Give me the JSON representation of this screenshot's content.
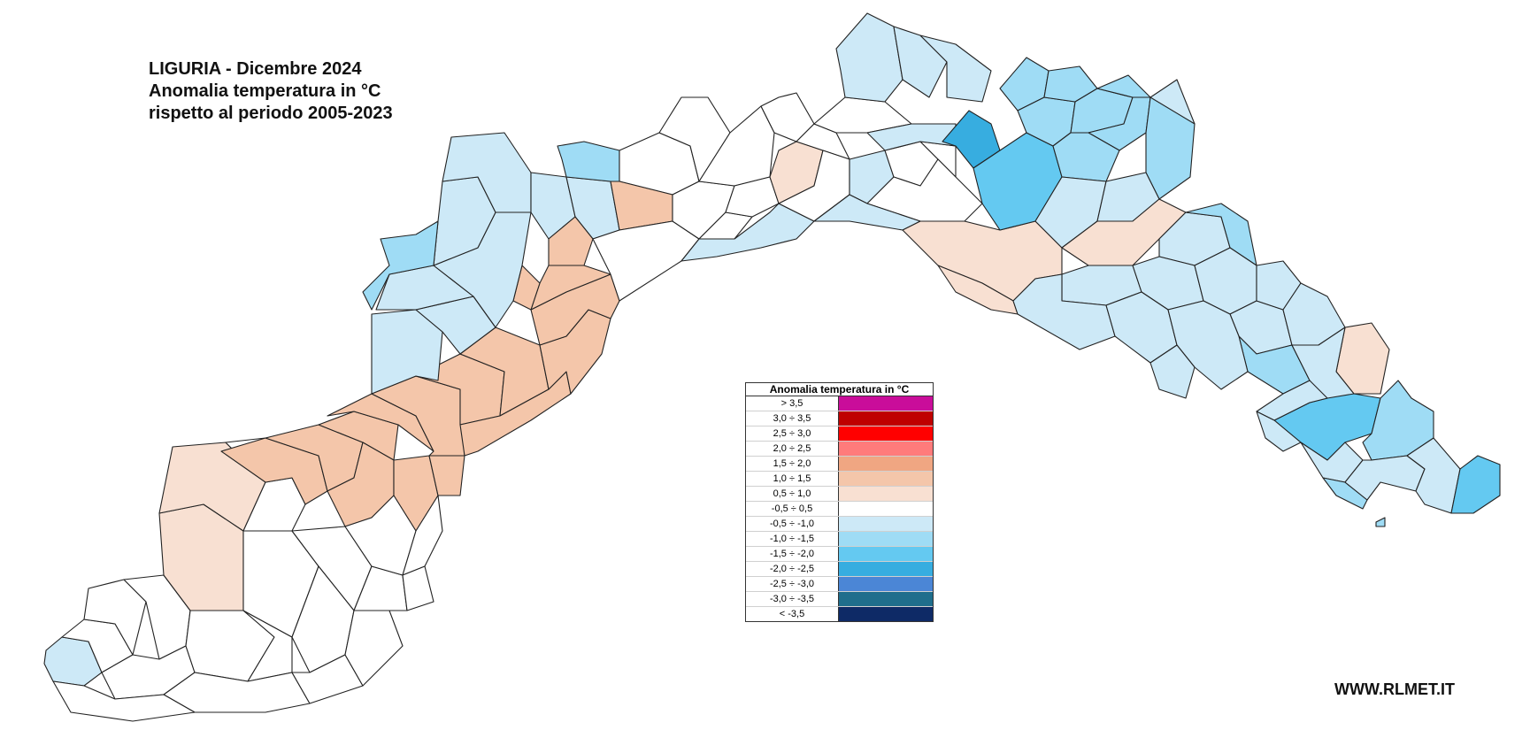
{
  "title": {
    "line1": "LIGURIA - Dicembre 2024",
    "line2": "Anomalia temperatura in °C",
    "line3": "rispetto al periodo 2005-2023"
  },
  "legend": {
    "heading": "Anomalia temperatura in °C",
    "classes": [
      {
        "label": "> 3,5",
        "color": "#c90d9a"
      },
      {
        "label": "3,0 ÷ 3,5",
        "color": "#bf0000"
      },
      {
        "label": "2,5 ÷ 3,0",
        "color": "#ff0000"
      },
      {
        "label": "2,0 ÷ 2,5",
        "color": "#ff7b7b"
      },
      {
        "label": "1,5 ÷ 2,0",
        "color": "#f0a682"
      },
      {
        "label": "1,0 ÷ 1,5",
        "color": "#f4c6aa"
      },
      {
        "label": "0,5 ÷ 1,0",
        "color": "#f8e0d2"
      },
      {
        "label": "-0,5 ÷ 0,5",
        "color": "#ffffff"
      },
      {
        "label": "-0,5 ÷ -1,0",
        "color": "#cde9f7"
      },
      {
        "label": "-1,0 ÷ -1,5",
        "color": "#9fdcf5"
      },
      {
        "label": "-1,5 ÷ -2,0",
        "color": "#64c9f1"
      },
      {
        "label": "-2,0 ÷ -2,5",
        "color": "#37ade0"
      },
      {
        "label": "-2,5 ÷ -3,0",
        "color": "#4b86d6"
      },
      {
        "label": "-3,0 ÷ -3,5",
        "color": "#1f6e8c"
      },
      {
        "label": "< -3,5",
        "color": "#0e2a66"
      }
    ]
  },
  "website": "WWW.RLMET.IT"
}
